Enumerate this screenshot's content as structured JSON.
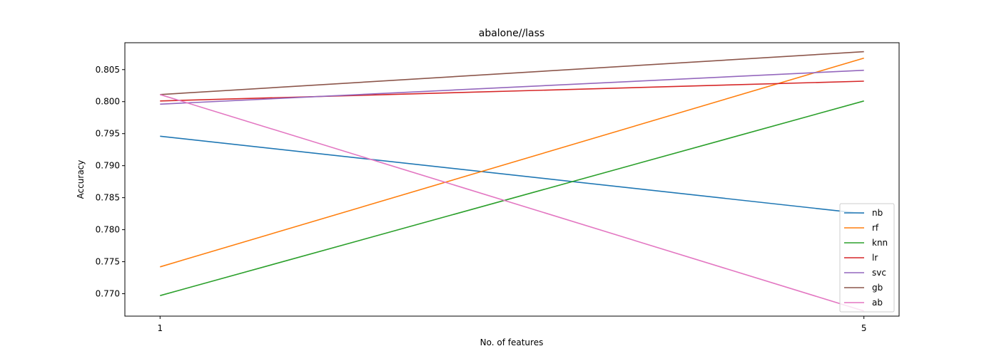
{
  "chart_data": {
    "type": "line",
    "title": "abalone//lass",
    "xlabel": "No. of features",
    "ylabel": "Accuracy",
    "x": [
      1,
      5
    ],
    "x_ticks": [
      1,
      5
    ],
    "x_tick_labels": [
      "1",
      "5"
    ],
    "xlim": [
      0.8,
      5.2
    ],
    "ylim": [
      0.7665,
      0.8092
    ],
    "y_ticks": [
      0.77,
      0.775,
      0.78,
      0.785,
      0.79,
      0.795,
      0.8,
      0.805
    ],
    "y_tick_labels": [
      "0.770",
      "0.775",
      "0.780",
      "0.785",
      "0.790",
      "0.795",
      "0.800",
      "0.805"
    ],
    "legend_position": "lower-right",
    "grid": false,
    "series": [
      {
        "name": "nb",
        "color": "#1f77b4",
        "values": [
          0.7946,
          0.7825
        ]
      },
      {
        "name": "rf",
        "color": "#ff7f0e",
        "values": [
          0.7742,
          0.8068
        ]
      },
      {
        "name": "knn",
        "color": "#2ca02c",
        "values": [
          0.7697,
          0.8001
        ]
      },
      {
        "name": "lr",
        "color": "#d62728",
        "values": [
          0.8001,
          0.8032
        ]
      },
      {
        "name": "svc",
        "color": "#9467bd",
        "values": [
          0.7996,
          0.8049
        ]
      },
      {
        "name": "gb",
        "color": "#8c564b",
        "values": [
          0.8011,
          0.8078
        ]
      },
      {
        "name": "ab",
        "color": "#e377c2",
        "values": [
          0.8011,
          0.7673
        ]
      }
    ]
  }
}
